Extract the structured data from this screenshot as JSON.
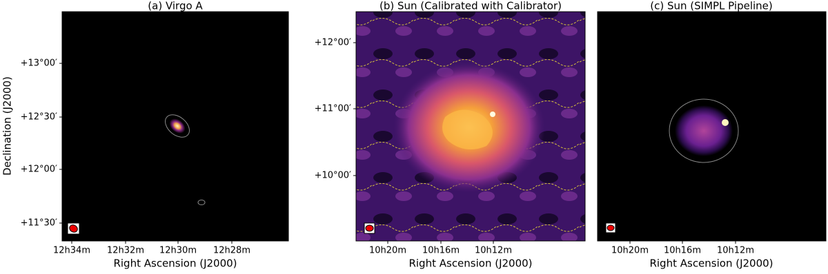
{
  "panels": [
    {
      "title": "(a) Virgo A",
      "x_label": "Right Ascension (J2000)",
      "y_label": "Declination (J2000)",
      "x_ticks": [
        "12h34m",
        "12h32m",
        "12h30m",
        "12h28m"
      ],
      "y_ticks": [
        "+13°00′",
        "+12°30′",
        "+12°00′",
        "+11°30′"
      ]
    },
    {
      "title": "(b) Sun (Calibrated with Calibrator)",
      "x_label": "Right Ascension (J2000)",
      "x_ticks": [
        "10h20m",
        "10h16m",
        "10h12m"
      ],
      "y_ticks": [
        "+12°00′",
        "+11°00′",
        "+10°00′"
      ]
    },
    {
      "title": "(c) Sun (SIMPL Pipeline)",
      "x_label": "Right Ascension (J2000)",
      "x_ticks": [
        "10h20m",
        "10h16m",
        "10h12m"
      ]
    }
  ]
}
